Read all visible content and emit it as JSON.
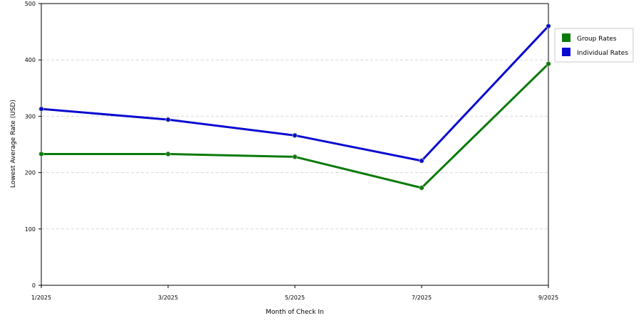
{
  "chart_data": {
    "type": "line",
    "title": "",
    "xlabel": "Month of Check In",
    "ylabel": "Lowest Average Rate (USD)",
    "categories": [
      "1/2025",
      "3/2025",
      "5/2025",
      "7/2025",
      "9/2025"
    ],
    "ylim": [
      0,
      500
    ],
    "yticks": [
      0,
      100,
      200,
      300,
      400,
      500
    ],
    "grid": true,
    "legend_position": "right",
    "series": [
      {
        "name": "Group Rates",
        "color": "#0a7a0a",
        "values": [
          233,
          233,
          228,
          173,
          393
        ]
      },
      {
        "name": "Individual Rates",
        "color": "#0a0ad0",
        "values": [
          313,
          294,
          266,
          221,
          460
        ]
      }
    ]
  }
}
